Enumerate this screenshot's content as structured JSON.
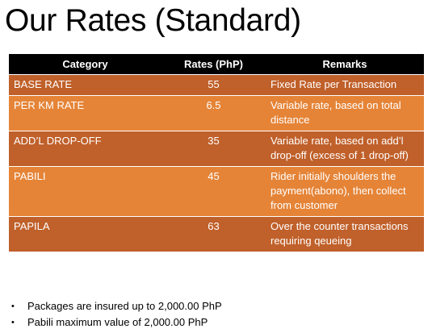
{
  "page": {
    "title": "Our Rates (Standard)"
  },
  "table": {
    "headers": [
      "Category",
      "Rates (PhP)",
      "Remarks"
    ],
    "rows": [
      {
        "category": "BASE RATE",
        "rate": "55",
        "remarks": "Fixed Rate per Transaction"
      },
      {
        "category": "PER KM RATE",
        "rate": "6.5",
        "remarks": "Variable rate, based on total distance"
      },
      {
        "category": "ADD’L DROP-OFF",
        "rate": "35",
        "remarks": "Variable rate, based on add’l drop-off (excess of 1 drop-off)"
      },
      {
        "category": "PABILI",
        "rate": "45",
        "remarks": "Rider initially shoulders the payment(abono), then collect from customer"
      },
      {
        "category": "PAPILA",
        "rate": "63",
        "remarks": "Over the counter transactions requiring qeueing"
      }
    ]
  },
  "notes": [
    "Packages are insured up to 2,000.00 PhP",
    "Pabili maximum value of 2,000.00 PhP"
  ],
  "colors": {
    "header_bg": "#000000",
    "row_dark": "#c0602a",
    "row_light": "#e58437"
  }
}
